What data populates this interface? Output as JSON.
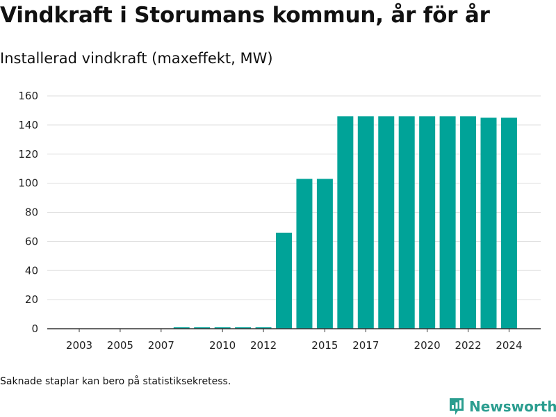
{
  "title": "Vindkraft i Storumans kommun, år för år",
  "subtitle": "Installerad vindkraft (maxeffekt, MW)",
  "footnote": "Saknade staplar kan bero på statistiksekretess.",
  "brand": {
    "name": "Newsworthy",
    "icon": "bar-chart-icon",
    "color": "#2a9d8f"
  },
  "chart_data": {
    "type": "bar",
    "bar_color": "#00a398",
    "categories": [
      "2003",
      "2004",
      "2005",
      "2006",
      "2007",
      "2008",
      "2009",
      "2010",
      "2011",
      "2012",
      "2013",
      "2014",
      "2015",
      "2016",
      "2017",
      "2018",
      "2019",
      "2020",
      "2021",
      "2022",
      "2023",
      "2024"
    ],
    "values": [
      0,
      0,
      0,
      0,
      0,
      1,
      1,
      1,
      1,
      1,
      66,
      103,
      103,
      146,
      146,
      146,
      146,
      146,
      146,
      146,
      145,
      145
    ],
    "xtick_labels": [
      "2003",
      "2005",
      "2007",
      "2010",
      "2012",
      "2015",
      "2017",
      "2020",
      "2022",
      "2024"
    ],
    "yticks": [
      0,
      20,
      40,
      60,
      80,
      100,
      120,
      140,
      160
    ],
    "ylim": [
      0,
      160
    ],
    "grid": true
  }
}
